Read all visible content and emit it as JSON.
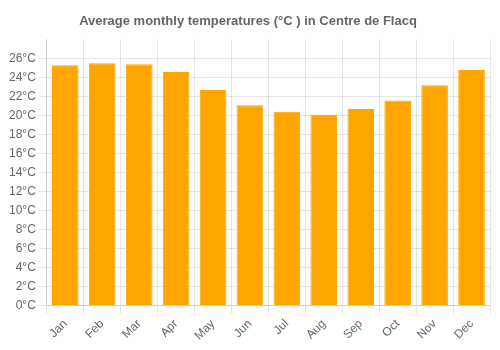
{
  "chart_data": {
    "type": "bar",
    "title": "Average monthly temperatures (°C ) in Centre de Flacq",
    "categories": [
      "Jan",
      "Feb",
      "Mar",
      "Apr",
      "May",
      "Jun",
      "Jul",
      "Aug",
      "Sep",
      "Oct",
      "Nov",
      "Dec"
    ],
    "values": [
      25.3,
      25.5,
      25.4,
      24.6,
      22.7,
      21.1,
      20.4,
      20.1,
      20.7,
      21.6,
      23.2,
      24.8
    ],
    "color": "#FFA500",
    "ylim": [
      0,
      28
    ],
    "yticks": [
      {
        "value": 0,
        "label": "0°C"
      },
      {
        "value": 2,
        "label": "2°C"
      },
      {
        "value": 4,
        "label": "4°C"
      },
      {
        "value": 6,
        "label": "6°C"
      },
      {
        "value": 8,
        "label": "8°C"
      },
      {
        "value": 10,
        "label": "10°C"
      },
      {
        "value": 12,
        "label": "12°C"
      },
      {
        "value": 14,
        "label": "14°C"
      },
      {
        "value": 16,
        "label": "16°C"
      },
      {
        "value": 18,
        "label": "18°C"
      },
      {
        "value": 20,
        "label": "20°C"
      },
      {
        "value": 22,
        "label": "22°C"
      },
      {
        "value": 24,
        "label": "24°C"
      },
      {
        "value": 26,
        "label": "26°C"
      }
    ],
    "grid": true
  }
}
